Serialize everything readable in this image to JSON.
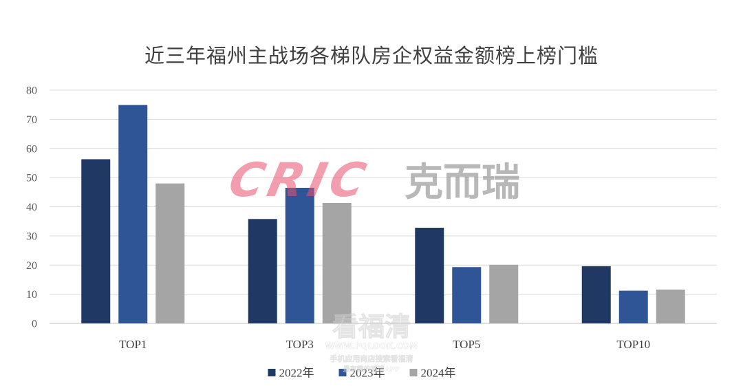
{
  "chart_data": {
    "type": "bar",
    "title": "近三年福州主战场各梯队房企权益金额榜上榜门槛",
    "categories": [
      "TOP1",
      "TOP3",
      "TOP5",
      "TOP10"
    ],
    "series": [
      {
        "name": "2022年",
        "values": [
          56.3,
          35.8,
          32.8,
          19.6
        ]
      },
      {
        "name": "2023年",
        "values": [
          74.9,
          46.5,
          19.3,
          11.2
        ]
      },
      {
        "name": "2024年",
        "values": [
          48.0,
          41.3,
          20.1,
          11.6
        ]
      }
    ],
    "ylim": [
      0,
      80
    ],
    "yticks": [
      0,
      10,
      20,
      30,
      40,
      50,
      60,
      70,
      80
    ],
    "grid": true,
    "legend": "bottom"
  },
  "colors": {
    "series": [
      "#203864",
      "#2f5597",
      "#a5a5a5"
    ],
    "grid": "#d9d9d9",
    "axis": "#bfbfbf"
  },
  "watermarks": {
    "cric_logo": "CRIC",
    "cric_cn": "克而瑞",
    "site_name": "看福清",
    "site_url": "WWW.FQLOOK.COM",
    "site_tagline_1": "手机应用商店搜索看福清",
    "site_tagline_2": "最有趣的福清APP"
  }
}
